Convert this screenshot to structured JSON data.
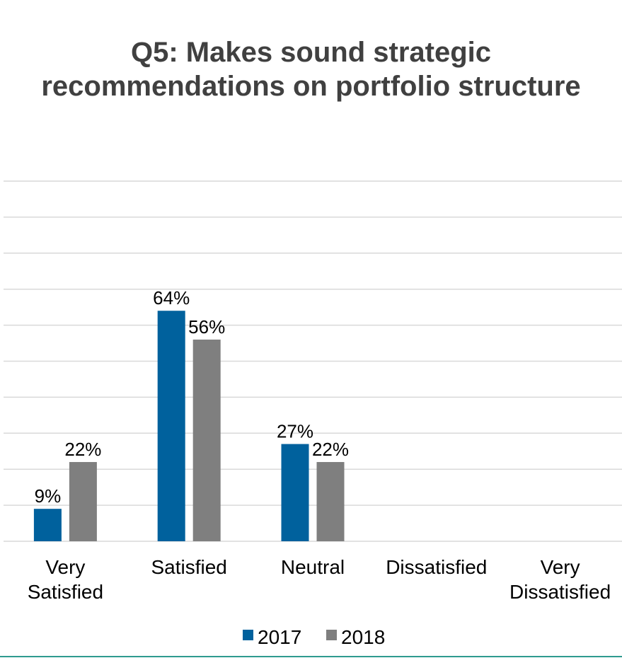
{
  "title_lines": [
    "Q5: Makes sound strategic",
    "recommendations on portfolio structure"
  ],
  "colors": {
    "series_2017": "#00619d",
    "series_2018": "#7f7f7f",
    "grid": "#d9d9d9",
    "text": "#000000",
    "title": "#404040"
  },
  "chart_data": {
    "type": "bar",
    "title": "Q5: Makes sound strategic recommendations on portfolio structure",
    "xlabel": "",
    "ylabel": "",
    "categories": [
      [
        "Very",
        "Satisfied"
      ],
      [
        "Satisfied"
      ],
      [
        "Neutral"
      ],
      [
        "Dissatisfied"
      ],
      [
        "Very",
        "Dissatisfied"
      ]
    ],
    "series": [
      {
        "name": "2017",
        "values": [
          9,
          64,
          27,
          null,
          null
        ],
        "labels": [
          "9%",
          "64%",
          "27%",
          "",
          ""
        ]
      },
      {
        "name": "2018",
        "values": [
          22,
          56,
          22,
          null,
          null
        ],
        "labels": [
          "22%",
          "56%",
          "22%",
          "",
          ""
        ]
      }
    ],
    "ylim": [
      0,
      100
    ],
    "grid": true,
    "legend_position": "bottom"
  }
}
